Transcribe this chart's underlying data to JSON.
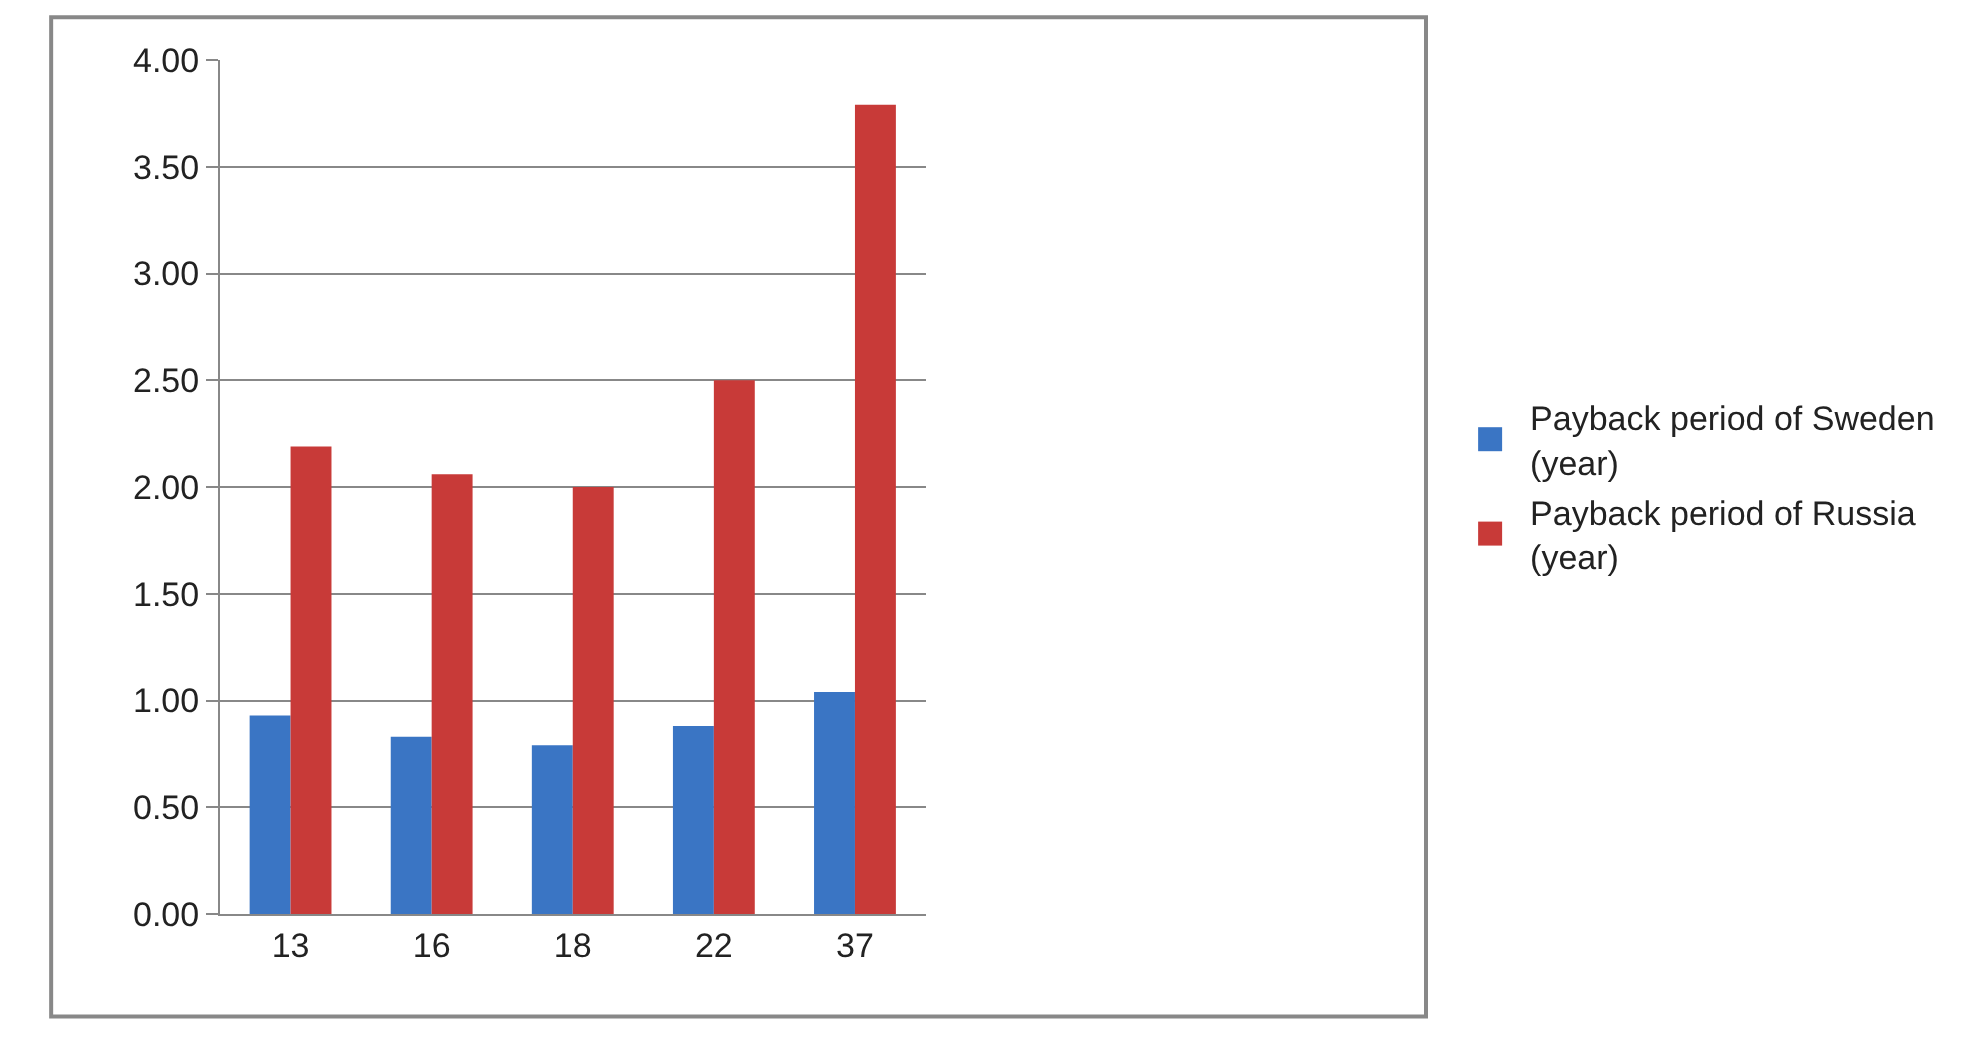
{
  "chart_data": {
    "type": "bar",
    "categories": [
      "13",
      "16",
      "18",
      "22",
      "37"
    ],
    "series": [
      {
        "name": "Payback period of Sweden (year)",
        "color": "#3a75c4",
        "values": [
          0.93,
          0.83,
          0.79,
          0.88,
          1.04
        ]
      },
      {
        "name": "Payback period of Russia (year)",
        "color": "#c83a38",
        "values": [
          2.19,
          2.06,
          2.0,
          2.5,
          3.79
        ]
      }
    ],
    "ylim": [
      0,
      4
    ],
    "yticks": [
      {
        "value": 0,
        "label": "0.00"
      },
      {
        "value": 0.5,
        "label": "0.50"
      },
      {
        "value": 1,
        "label": "1.00"
      },
      {
        "value": 1.5,
        "label": "1.50"
      },
      {
        "value": 2,
        "label": "2.00"
      },
      {
        "value": 2.5,
        "label": "2.50"
      },
      {
        "value": 3,
        "label": "3.00"
      },
      {
        "value": 3.5,
        "label": "3.50"
      },
      {
        "value": 4,
        "label": "4.00"
      }
    ],
    "grid": "y",
    "legend": "right"
  }
}
